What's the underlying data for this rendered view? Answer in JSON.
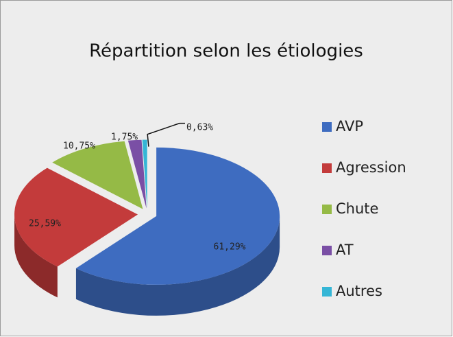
{
  "chart_data": {
    "type": "pie3d",
    "title": "Répartition selon les étiologies",
    "categories": [
      "AVP",
      "Agression",
      "Chute",
      "AT",
      "Autres"
    ],
    "values": [
      61.29,
      25.59,
      10.75,
      1.75,
      0.63
    ],
    "value_labels": [
      "61,29%",
      "25,59%",
      "10,75%",
      "1,75%",
      "0,63%"
    ],
    "colors": [
      "#3e6cc0",
      "#c33b3b",
      "#95ba46",
      "#7a4fa5",
      "#35b6d6"
    ],
    "legend": "right"
  }
}
